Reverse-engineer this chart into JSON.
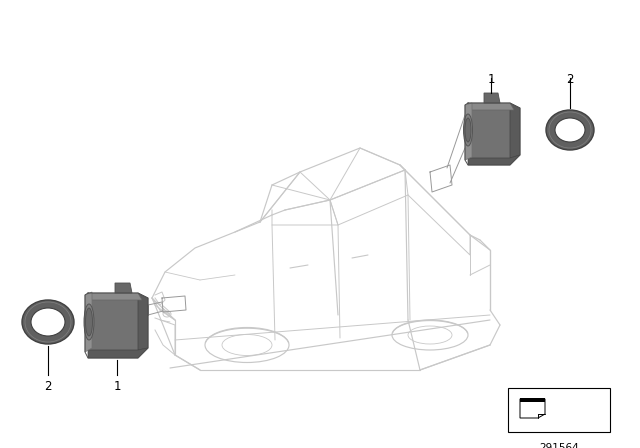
{
  "bg_color": "#ffffff",
  "car_color": "#c8c8c8",
  "sensor_dark": "#686868",
  "sensor_mid": "#7a7a7a",
  "sensor_light": "#909090",
  "ring_color": "#505050",
  "ann_color": "#888888",
  "label_color": "#000000",
  "part_number": "291564",
  "label_fontsize": 8.5,
  "part_num_fontsize": 7.5
}
